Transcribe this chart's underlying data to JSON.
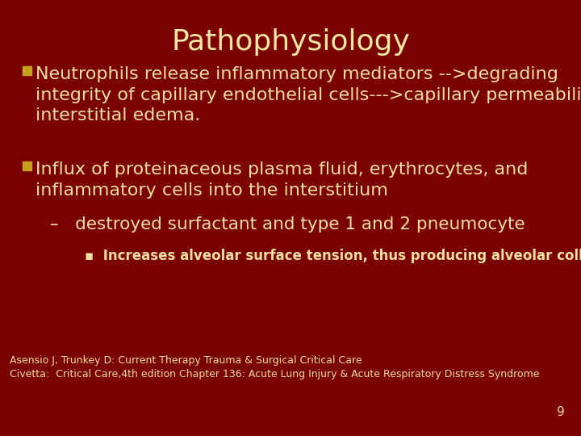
{
  "title": "Pathophysiology",
  "title_color": "#F5E6A3",
  "background_color": "#7B0000",
  "text_color": "#F0DFA0",
  "bullet_color": "#C8A020",
  "title_fontsize": 26,
  "body_fontsize": 16,
  "sub_fontsize": 15.5,
  "subsub_fontsize": 12,
  "footer_fontsize": 9,
  "page_number": "9",
  "bullet1": "Neutrophils release inflammatory mediators -->degrading\nintegrity of capillary endothelial cells--->capillary permeability,\ninterstitial edema.",
  "bullet2_line1": "Influx of proteinaceous plasma fluid, erythrocytes, and\ninflammatory cells into the interstitium",
  "sub1": "–   destroyed surfactant and type 1 and 2 pneumocyte",
  "subsub1": "▪  Increases alveolar surface tension, thus producing alveolar collapse",
  "footer1": "Asensio J, Trunkey D: Current Therapy Trauma & Surgical Critical Care",
  "footer2": "Civetta:  Critical Care,4th edition Chapter 136: Acute Lung Injury & Acute Respiratory Distress Syndrome"
}
